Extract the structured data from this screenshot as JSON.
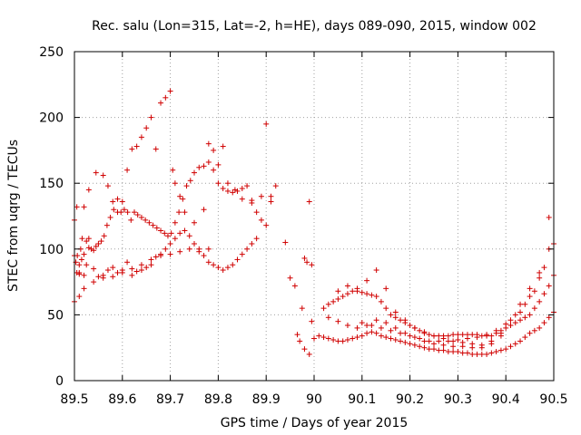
{
  "chart_data": {
    "type": "scatter",
    "title": "Rec. salu (Lon=315, Lat=-2, h=HE), days 089-090, 2015, window 002",
    "xlabel": "GPS time / Days of year 2015",
    "ylabel": "STEC from uqrg / TECUs",
    "xlim": [
      89.5,
      90.5
    ],
    "ylim": [
      0,
      250
    ],
    "xticks": [
      "89.5",
      "89.6",
      "89.7",
      "89.8",
      "89.9",
      "90",
      "90.1",
      "90.2",
      "90.3",
      "90.4",
      "90.5"
    ],
    "yticks": [
      "0",
      "50",
      "100",
      "150",
      "200",
      "250"
    ],
    "grid": true,
    "marker": "+",
    "color": "#d00000",
    "series": [
      {
        "x": [
          89.5,
          89.503,
          89.506,
          89.51,
          89.513,
          89.516,
          89.52,
          89.525,
          89.53,
          89.535,
          89.54,
          89.545,
          89.55,
          89.556,
          89.562,
          89.568,
          89.575,
          89.582,
          89.59,
          89.597,
          89.604,
          89.611,
          89.618,
          89.625,
          89.632,
          89.64,
          89.648,
          89.656,
          89.664,
          89.672,
          89.68,
          89.688,
          89.695,
          89.702,
          89.71,
          89.718,
          89.726,
          89.734,
          89.742,
          89.75,
          89.76,
          89.77,
          89.78,
          89.79,
          89.8,
          89.81,
          89.82,
          89.83,
          89.84,
          89.85,
          89.86,
          89.87,
          89.88,
          89.89,
          89.9,
          89.91,
          89.92
        ],
        "y": [
          122,
          90,
          95,
          82,
          100,
          108,
          96,
          106,
          108,
          100,
          99,
          102,
          104,
          106,
          110,
          118,
          124,
          130,
          128,
          128,
          130,
          128,
          122,
          128,
          126,
          124,
          122,
          120,
          118,
          116,
          114,
          112,
          110,
          112,
          120,
          128,
          138,
          148,
          152,
          158,
          162,
          163,
          166,
          160,
          150,
          146,
          144,
          143,
          144,
          146,
          148,
          135,
          128,
          122,
          118,
          140,
          148
        ]
      },
      {
        "x": [
          89.505,
          89.51,
          89.52,
          89.53,
          89.545,
          89.56,
          89.57,
          89.58,
          89.59,
          89.6,
          89.61,
          89.62,
          89.63,
          89.64,
          89.65,
          89.66,
          89.67,
          89.68,
          89.69,
          89.7,
          89.705,
          89.71,
          89.72,
          89.73,
          89.75,
          89.77,
          89.78,
          89.79,
          89.8,
          89.81,
          89.82,
          89.835,
          89.85,
          89.87,
          89.89,
          89.9,
          89.91
        ],
        "y": [
          132,
          88,
          132,
          145,
          158,
          156,
          148,
          136,
          138,
          136,
          160,
          176,
          178,
          185,
          192,
          200,
          176,
          211,
          215,
          220,
          160,
          150,
          140,
          128,
          120,
          130,
          180,
          175,
          164,
          178,
          150,
          145,
          138,
          137,
          140,
          195,
          136
        ]
      },
      {
        "x": [
          89.5,
          89.505,
          89.51,
          89.515,
          89.52,
          89.525,
          89.53,
          89.54,
          89.55,
          89.56,
          89.57,
          89.58,
          89.59,
          89.6,
          89.61,
          89.62,
          89.63,
          89.64,
          89.65,
          89.66,
          89.67,
          89.68,
          89.69,
          89.7,
          89.71,
          89.72,
          89.73,
          89.74,
          89.75,
          89.76,
          89.77,
          89.78,
          89.79,
          89.8,
          89.81,
          89.82,
          89.83,
          89.84,
          89.85,
          89.86,
          89.87,
          89.88
        ],
        "y": [
          95,
          82,
          81,
          92,
          80,
          88,
          101,
          85,
          79,
          80,
          84,
          86,
          82,
          84,
          90,
          80,
          83,
          84,
          86,
          88,
          94,
          96,
          100,
          104,
          108,
          112,
          114,
          110,
          104,
          98,
          95,
          90,
          88,
          86,
          84,
          86,
          88,
          92,
          96,
          100,
          104,
          108
        ]
      },
      {
        "x": [
          89.5,
          89.51,
          89.52,
          89.54,
          89.56,
          89.58,
          89.6,
          89.62,
          89.64,
          89.66,
          89.68,
          89.7,
          89.72,
          89.74,
          89.76,
          89.78
        ],
        "y": [
          60,
          64,
          70,
          75,
          78,
          79,
          82,
          85,
          88,
          92,
          95,
          96,
          98,
          100,
          100,
          100
        ]
      },
      {
        "x": [
          89.94,
          89.95,
          89.96,
          89.965,
          89.97,
          89.975,
          89.98,
          89.985,
          89.99,
          89.995
        ],
        "y": [
          105,
          78,
          72,
          35,
          30,
          55,
          93,
          90,
          136,
          45
        ],
        "extra_x": [
          89.98,
          89.99,
          89.995
        ],
        "extra_y": [
          24,
          20,
          88
        ]
      },
      {
        "x": [
          90.0,
          90.01,
          90.02,
          90.03,
          90.04,
          90.05,
          90.06,
          90.07,
          90.08,
          90.09,
          90.1,
          90.11,
          90.12,
          90.13,
          90.14,
          90.15,
          90.16,
          90.17,
          90.18,
          90.19,
          90.2,
          90.21,
          90.22,
          90.23,
          90.24,
          90.25,
          90.26,
          90.27,
          90.28,
          90.29,
          90.3,
          90.31,
          90.32,
          90.33,
          90.34,
          90.35,
          90.36,
          90.37,
          90.38,
          90.39,
          90.4,
          90.41,
          90.42,
          90.43,
          90.44,
          90.45,
          90.46,
          90.47,
          90.48,
          90.49,
          90.5
        ],
        "y": [
          32,
          34,
          33,
          32,
          31,
          30,
          30,
          31,
          32,
          33,
          34,
          36,
          37,
          36,
          34,
          33,
          32,
          31,
          30,
          29,
          28,
          27,
          26,
          25,
          24,
          24,
          23,
          23,
          22,
          22,
          22,
          21,
          21,
          20,
          20,
          20,
          20,
          21,
          22,
          23,
          24,
          26,
          28,
          30,
          33,
          36,
          38,
          40,
          44,
          48,
          52
        ]
      },
      {
        "x": [
          90.02,
          90.03,
          90.04,
          90.05,
          90.06,
          90.07,
          90.08,
          90.09,
          90.1,
          90.11,
          90.12,
          90.13,
          90.14,
          90.15,
          90.16,
          90.17,
          90.18,
          90.19,
          90.2,
          90.21,
          90.22,
          90.23,
          90.24,
          90.25,
          90.26,
          90.27,
          90.28,
          90.29,
          90.3,
          90.31,
          90.32,
          90.33,
          90.34,
          90.35,
          90.36,
          90.37,
          90.38,
          90.39,
          90.4,
          90.41,
          90.42,
          90.43,
          90.44,
          90.45,
          90.46,
          90.47,
          90.48,
          90.49,
          90.5
        ],
        "y": [
          55,
          58,
          60,
          62,
          64,
          66,
          68,
          68,
          67,
          66,
          65,
          64,
          60,
          55,
          50,
          48,
          46,
          44,
          42,
          40,
          38,
          36,
          35,
          34,
          34,
          34,
          34,
          35,
          35,
          35,
          35,
          35,
          35,
          34,
          34,
          34,
          36,
          38,
          40,
          42,
          44,
          46,
          48,
          50,
          55,
          60,
          66,
          72,
          80
        ]
      },
      {
        "x": [
          90.03,
          90.05,
          90.07,
          90.09,
          90.11,
          90.13,
          90.15,
          90.17,
          90.19,
          90.21,
          90.23,
          90.25,
          90.27,
          90.29,
          90.31,
          90.33,
          90.35,
          90.37,
          90.39,
          90.41,
          90.43,
          90.45,
          90.47,
          90.49
        ],
        "y": [
          48,
          45,
          42,
          40,
          42,
          46,
          44,
          40,
          36,
          33,
          30,
          28,
          27,
          26,
          26,
          25,
          25,
          28,
          34,
          42,
          52,
          64,
          78,
          100
        ]
      },
      {
        "x": [
          90.05,
          90.07,
          90.09,
          90.11,
          90.13,
          90.15,
          90.17,
          90.19,
          90.21,
          90.23,
          90.25,
          90.27,
          90.29,
          90.31,
          90.33,
          90.35,
          90.37,
          90.39,
          90.41,
          90.43,
          90.45,
          90.47,
          90.49
        ],
        "y": [
          68,
          72,
          70,
          76,
          84,
          70,
          52,
          46,
          40,
          37,
          34,
          32,
          30,
          29,
          28,
          27,
          30,
          36,
          46,
          58,
          70,
          82,
          124
        ]
      },
      {
        "x": [
          90.1,
          90.12,
          90.14,
          90.16,
          90.18,
          90.2,
          90.22,
          90.24,
          90.26,
          90.28,
          90.3,
          90.32,
          90.34,
          90.36,
          90.38,
          90.4,
          90.42,
          90.44,
          90.46,
          90.48,
          90.5
        ],
        "y": [
          44,
          42,
          40,
          38,
          36,
          34,
          32,
          30,
          30,
          30,
          31,
          32,
          33,
          35,
          38,
          43,
          50,
          58,
          68,
          86,
          104
        ]
      }
    ]
  }
}
